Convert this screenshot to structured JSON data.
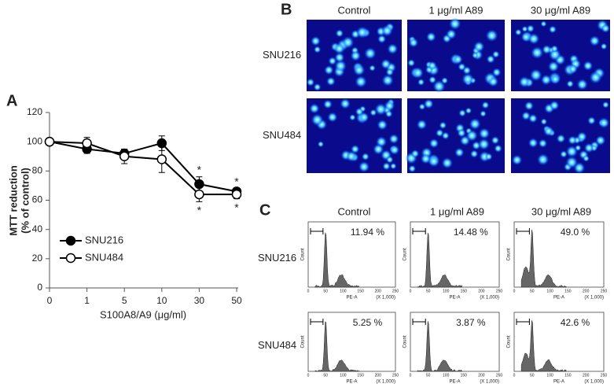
{
  "chart_data": {
    "type": "line",
    "panel_label": "A",
    "xlabel": "S100A8/A9 (μg/ml)",
    "ylabel": [
      "MTT reduction",
      "(% of control)"
    ],
    "categories": [
      "0",
      "1",
      "5",
      "10",
      "30",
      "50"
    ],
    "ylim": [
      0,
      120
    ],
    "yticks": [
      0,
      20,
      40,
      60,
      80,
      100,
      120
    ],
    "series": [
      {
        "name": "SNU216",
        "color": "#000000",
        "marker": "filled",
        "values": [
          100,
          95,
          92,
          99,
          71,
          66
        ],
        "errors": [
          0,
          3,
          3,
          5,
          5,
          2
        ],
        "significance_labels": [
          null,
          null,
          null,
          null,
          "*",
          "*"
        ]
      },
      {
        "name": "SNU484",
        "color": "#000000",
        "marker": "open",
        "values": [
          100,
          99,
          90,
          88,
          64,
          64
        ],
        "errors": [
          0,
          4,
          5,
          9,
          5,
          3
        ],
        "significance_labels": [
          null,
          null,
          null,
          null,
          "*",
          "*"
        ]
      }
    ]
  },
  "panel_b": {
    "label": "B",
    "columns": [
      "Control",
      "1 μg/ml A89",
      "30 μg/ml A89"
    ],
    "rows": [
      "SNU216",
      "SNU484"
    ]
  },
  "panel_c": {
    "label": "C",
    "columns": [
      "Control",
      "1 μg/ml A89",
      "30 μg/ml A89"
    ],
    "rows": [
      "SNU216",
      "SNU484"
    ],
    "cells": [
      [
        "11.94 %",
        "14.48 %",
        "49.0 %"
      ],
      [
        "5.25 %",
        "3.87 %",
        "42.6 %"
      ]
    ],
    "histogram_axis": {
      "xlabel": "PE-A",
      "xunit": "(X 1,000)",
      "ylabel": "Count",
      "xticks": [
        "0",
        "50",
        "100",
        "150",
        "200",
        "250"
      ]
    }
  }
}
